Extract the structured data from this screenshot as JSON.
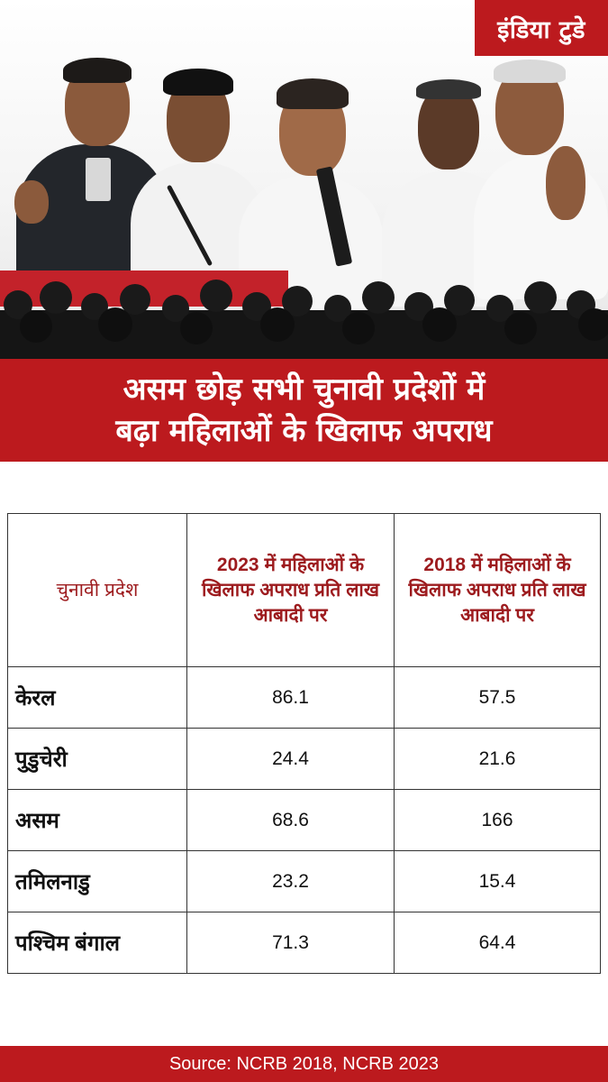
{
  "brand": {
    "logo_text": "इंडिया टुडे"
  },
  "headline": {
    "line1": "असम छोड़ सभी चुनावी प्रदेशों में",
    "line2": "बढ़ा महिलाओं के खिलाफ अपराध"
  },
  "table": {
    "headers": [
      "चुनावी प्रदेश",
      "2023 में महिलाओं के खिलाफ अपराध प्रति लाख आबादी पर",
      "2018 में महिलाओं के खिलाफ अपराध प्रति लाख आबादी पर"
    ],
    "rows": [
      {
        "state": "केरल",
        "y2023": "86.1",
        "y2018": "57.5"
      },
      {
        "state": "पुडुचेरी",
        "y2023": "24.4",
        "y2018": "21.6"
      },
      {
        "state": "असम",
        "y2023": "68.6",
        "y2018": "166"
      },
      {
        "state": "तमिलनाडु",
        "y2023": "23.2",
        "y2018": "15.4"
      },
      {
        "state": "पश्चिम बंगाल",
        "y2023": "71.3",
        "y2018": "64.4"
      }
    ]
  },
  "footer": {
    "source": "Source: NCRB 2018, NCRB 2023"
  },
  "colors": {
    "brand_red": "#bc1a1e",
    "header_text": "#9d1b1e"
  }
}
